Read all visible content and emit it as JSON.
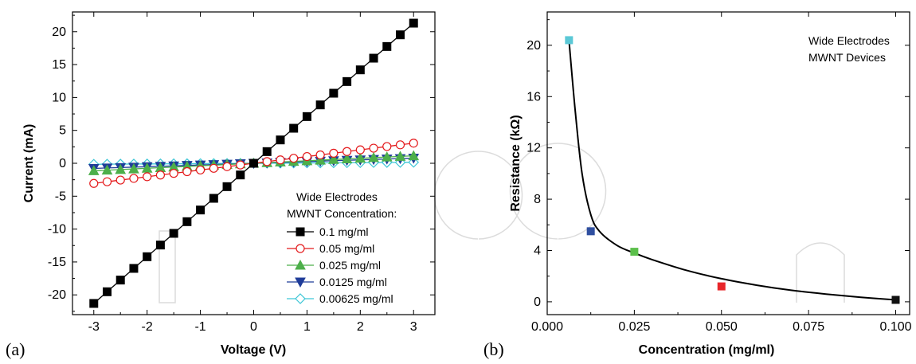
{
  "panel_a_label": "(a)",
  "panel_b_label": "(b)",
  "panel_a": {
    "ylabel": "Current (mA)",
    "xlabel": "Voltage (V)",
    "legend_heading": [
      "Wide Electrodes",
      "MWNT Concentration:"
    ],
    "x_ticks": [
      "-3",
      "-2",
      "-1",
      "0",
      "1",
      "2",
      "3"
    ],
    "y_ticks": [
      "-20",
      "-15",
      "-10",
      "-5",
      "0",
      "5",
      "10",
      "15",
      "20"
    ]
  },
  "panel_b": {
    "ylabel": "Resistance (kΩ)",
    "xlabel": "Concentration (mg/ml)",
    "note": [
      "Wide Electrodes",
      "MWNT Devices"
    ],
    "x_ticks": [
      "0.000",
      "0.025",
      "0.050",
      "0.075",
      "0.100"
    ],
    "y_ticks": [
      "0",
      "4",
      "8",
      "12",
      "16",
      "20"
    ]
  },
  "chart_data": [
    {
      "type": "line",
      "xlabel": "Voltage (V)",
      "ylabel": "Current (mA)",
      "xlim": [
        -3.4,
        3.4
      ],
      "ylim": [
        -23,
        23
      ],
      "grid": false,
      "legend_placement": "bottom-right",
      "annotations": [
        "Wide Electrodes",
        "MWNT Concentration:"
      ],
      "series": [
        {
          "name": "0.1 mg/ml",
          "slope": 7.1,
          "marker": "square-filled",
          "color": "#000000"
        },
        {
          "name": "0.05 mg/ml",
          "slope": 1.02,
          "marker": "circle-open",
          "color": "#e41a1c"
        },
        {
          "name": "0.025 mg/ml",
          "slope": 0.38,
          "marker": "triangle-filled",
          "color": "#4daf4a"
        },
        {
          "name": "0.0125 mg/ml",
          "slope": 0.26,
          "marker": "triangle-down-filled",
          "color": "#1f3c99"
        },
        {
          "name": "0.00625 mg/ml",
          "slope": 0.05,
          "marker": "diamond-open",
          "color": "#3ec6d6"
        }
      ],
      "x": [
        -3.0,
        -2.75,
        -2.5,
        -2.25,
        -2.0,
        -1.75,
        -1.5,
        -1.25,
        -1.0,
        -0.75,
        -0.5,
        -0.25,
        0.0,
        0.25,
        0.5,
        0.75,
        1.0,
        1.25,
        1.5,
        1.75,
        2.0,
        2.25,
        2.5,
        2.75,
        3.0
      ]
    },
    {
      "type": "scatter",
      "xlabel": "Concentration (mg/ml)",
      "ylabel": "Resistance (kΩ)",
      "xlim": [
        0.0,
        0.104
      ],
      "ylim": [
        -1.0,
        22.6
      ],
      "grid": false,
      "annotations": [
        "Wide Electrodes",
        "MWNT Devices"
      ],
      "points": [
        {
          "x": 0.00625,
          "y": 20.4,
          "color": "#5bc8d6"
        },
        {
          "x": 0.0125,
          "y": 5.5,
          "color": "#2f4fa0"
        },
        {
          "x": 0.025,
          "y": 3.9,
          "color": "#5bbf4a"
        },
        {
          "x": 0.05,
          "y": 1.2,
          "color": "#e8262a"
        },
        {
          "x": 0.1,
          "y": 0.15,
          "color": "#111111"
        }
      ],
      "fit_curve": {
        "x": [
          0.00625,
          0.008,
          0.01,
          0.0125,
          0.015,
          0.02,
          0.025,
          0.03,
          0.04,
          0.05,
          0.06,
          0.07,
          0.08,
          0.09,
          0.1
        ],
        "y": [
          20.4,
          15.0,
          10.0,
          6.8,
          5.5,
          4.4,
          3.8,
          3.3,
          2.45,
          1.8,
          1.3,
          0.9,
          0.6,
          0.35,
          0.15
        ],
        "color": "#000000"
      }
    }
  ]
}
